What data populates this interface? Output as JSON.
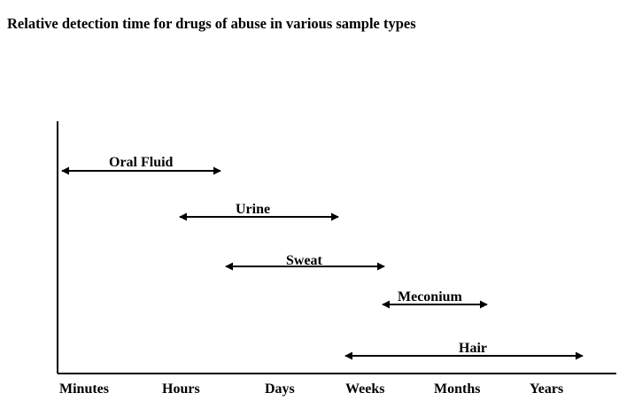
{
  "title": "Relative detection time for drugs of abuse in various sample types",
  "x_axis": {
    "ticks": [
      "Minutes",
      "Hours",
      "Days",
      "Weeks",
      "Months",
      "Years"
    ]
  },
  "ranges": [
    {
      "label": "Oral Fluid",
      "from": "Minutes",
      "to": "Days"
    },
    {
      "label": "Urine",
      "from": "Hours",
      "to": "Weeks"
    },
    {
      "label": "Sweat",
      "from": "Hours",
      "to": "Weeks"
    },
    {
      "label": "Meconium",
      "from": "Weeks",
      "to": "Months"
    },
    {
      "label": "Hair",
      "from": "Weeks",
      "to": "Years"
    }
  ],
  "colors": {
    "line": "#000000",
    "background": "#ffffff"
  }
}
